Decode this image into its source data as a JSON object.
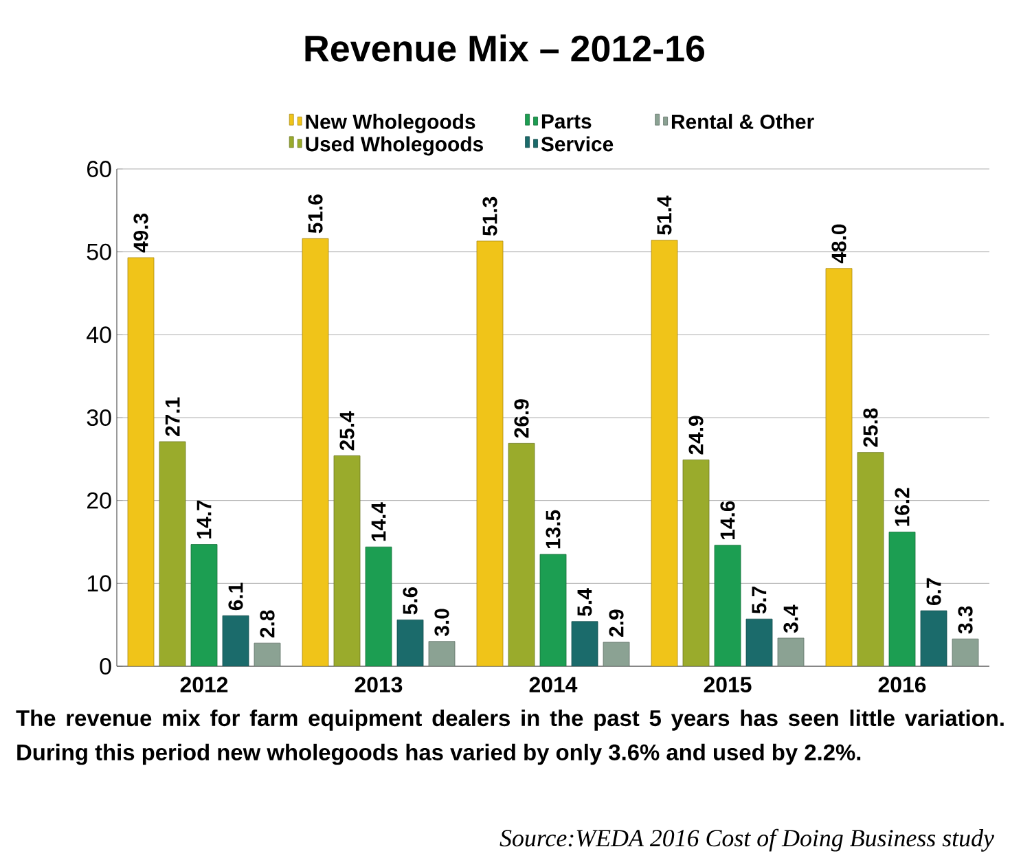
{
  "chart_data": {
    "type": "bar",
    "title": "Revenue Mix – 2012-16",
    "categories": [
      "2012",
      "2013",
      "2014",
      "2015",
      "2016"
    ],
    "series": [
      {
        "name": "New Wholegoods",
        "color": "#f0c419",
        "values": [
          49.3,
          51.6,
          51.3,
          51.4,
          48.0
        ],
        "value_labels": [
          "49.3",
          "51.6",
          "51.3",
          "51.4",
          "48.0"
        ]
      },
      {
        "name": "Used Wholegoods",
        "color": "#9aab2c",
        "values": [
          27.1,
          25.4,
          26.9,
          24.9,
          25.8
        ],
        "value_labels": [
          "27.1",
          "25.4",
          "26.9",
          "24.9",
          "25.8"
        ]
      },
      {
        "name": "Parts",
        "color": "#1c9e52",
        "values": [
          14.7,
          14.4,
          13.5,
          14.6,
          16.2
        ],
        "value_labels": [
          "14.7",
          "14.4",
          "13.5",
          "14.6",
          "16.2"
        ]
      },
      {
        "name": "Service",
        "color": "#1b6b6b",
        "values": [
          6.1,
          5.6,
          5.4,
          5.7,
          6.7
        ],
        "value_labels": [
          "6.1",
          "5.6",
          "5.4",
          "5.7",
          "6.7"
        ]
      },
      {
        "name": "Rental & Other",
        "color": "#8ba293",
        "values": [
          2.8,
          3.0,
          2.9,
          3.4,
          3.3
        ],
        "value_labels": [
          "2.8",
          "3.0",
          "2.9",
          "3.4",
          "3.3"
        ]
      }
    ],
    "ylim": [
      0,
      60
    ],
    "yticks": [
      0,
      10,
      20,
      30,
      40,
      50,
      60
    ],
    "grid": "y",
    "legend": "top",
    "annotations": [
      "The revenue mix for farm equipment dealers in the past 5 years has seen little variation. During this period new wholegoods has varied by only 3.6% and used by 2.2%.",
      "Source:WEDA 2016 Cost of Doing Business study"
    ]
  }
}
